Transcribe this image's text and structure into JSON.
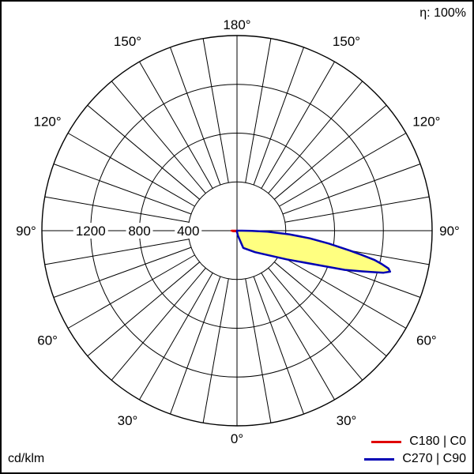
{
  "chart_data": {
    "type": "polar",
    "efficiency_label": "η: 100%",
    "unit_label": "cd/klm",
    "radial_ticks": [
      "400",
      "800",
      "1200"
    ],
    "radial_tick_values": [
      400,
      800,
      1200
    ],
    "ring_values": [
      400,
      800,
      1200,
      1600
    ],
    "radial_max": 1600,
    "angle_labels": [
      {
        "text": "180°",
        "angle": 180,
        "side": "top"
      },
      {
        "text": "150°",
        "angle": 150,
        "side": "left"
      },
      {
        "text": "150°",
        "angle": 150,
        "side": "right"
      },
      {
        "text": "120°",
        "angle": 120,
        "side": "left"
      },
      {
        "text": "120°",
        "angle": 120,
        "side": "right"
      },
      {
        "text": "90°",
        "angle": 90,
        "side": "left"
      },
      {
        "text": "90°",
        "angle": 90,
        "side": "right"
      },
      {
        "text": "60°",
        "angle": 60,
        "side": "left"
      },
      {
        "text": "60°",
        "angle": 60,
        "side": "right"
      },
      {
        "text": "30°",
        "angle": 30,
        "side": "left"
      },
      {
        "text": "30°",
        "angle": 30,
        "side": "right"
      },
      {
        "text": "0°",
        "angle": 0,
        "side": "bottom"
      }
    ],
    "series": [
      {
        "name": "C180 | C0",
        "color": "#e00000",
        "fill": "none",
        "side": "left",
        "angles": [
          0,
          60,
          80,
          90
        ],
        "values": [
          8,
          10,
          30,
          45
        ]
      },
      {
        "name": "C270 | C90",
        "color": "#0000b4",
        "fill": "#ffff80",
        "side": "right",
        "angles": [
          0,
          10,
          20,
          40,
          60,
          68,
          70,
          72,
          73,
          74,
          75,
          76,
          77,
          78,
          79,
          80,
          82,
          84,
          86,
          88,
          89,
          90
        ],
        "values": [
          10,
          40,
          150,
          230,
          470,
          780,
          940,
          1080,
          1160,
          1250,
          1300,
          1280,
          1220,
          1150,
          1040,
          940,
          760,
          600,
          430,
          250,
          120,
          40
        ]
      }
    ]
  }
}
